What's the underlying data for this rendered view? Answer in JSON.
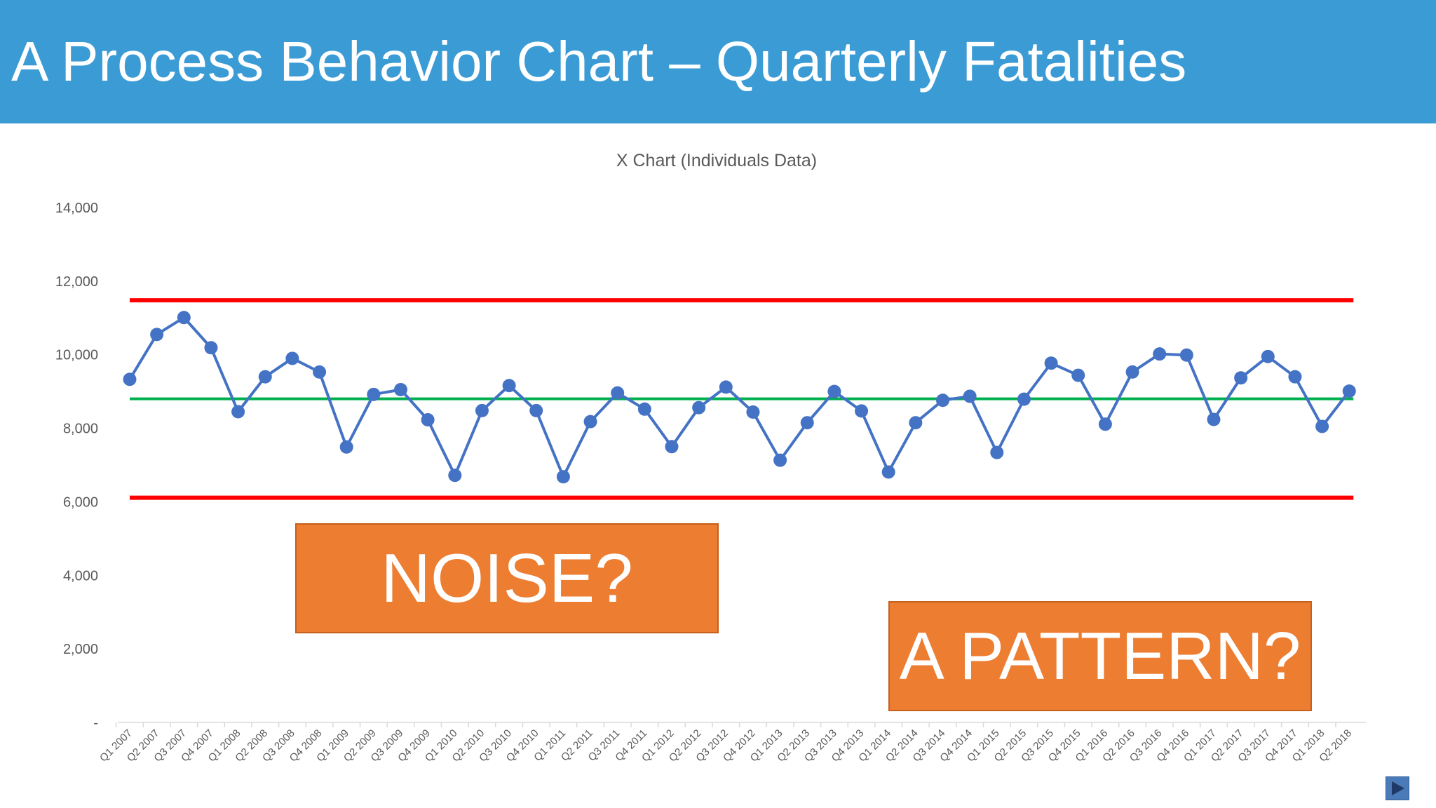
{
  "slide": {
    "title": "A Process Behavior Chart – Quarterly Fatalities"
  },
  "callouts": {
    "noise": "NOISE?",
    "pattern": "A PATTERN?"
  },
  "chart_data": {
    "type": "line",
    "title": "X Chart (Individuals Data)",
    "xlabel": "",
    "ylabel": "",
    "ylim": [
      0,
      14000
    ],
    "y_ticks": [
      {
        "value": 0,
        "label": "-"
      },
      {
        "value": 2000,
        "label": "2,000"
      },
      {
        "value": 4000,
        "label": "4,000"
      },
      {
        "value": 6000,
        "label": "6,000"
      },
      {
        "value": 8000,
        "label": "8,000"
      },
      {
        "value": 10000,
        "label": "10,000"
      },
      {
        "value": 12000,
        "label": "12,000"
      },
      {
        "value": 14000,
        "label": "14,000"
      }
    ],
    "grid": false,
    "legend": "none",
    "categories": [
      "Q1 2007",
      "Q2 2007",
      "Q3 2007",
      "Q4 2007",
      "Q1 2008",
      "Q2 2008",
      "Q3 2008",
      "Q4 2008",
      "Q1 2009",
      "Q2 2009",
      "Q3 2009",
      "Q4 2009",
      "Q1 2010",
      "Q2 2010",
      "Q3 2010",
      "Q4 2010",
      "Q1 2011",
      "Q2 2011",
      "Q3 2011",
      "Q4 2011",
      "Q1 2012",
      "Q2 2012",
      "Q3 2012",
      "Q4 2012",
      "Q1 2013",
      "Q2 2013",
      "Q3 2013",
      "Q4 2013",
      "Q1 2014",
      "Q2 2014",
      "Q3 2014",
      "Q4 2014",
      "Q1 2015",
      "Q2 2015",
      "Q3 2015",
      "Q4 2015",
      "Q1 2016",
      "Q2 2016",
      "Q3 2016",
      "Q4 2016",
      "Q1 2017",
      "Q2 2017",
      "Q3 2017",
      "Q4 2017",
      "Q1 2018",
      "Q2 2018"
    ],
    "series": [
      {
        "values": [
          9330,
          10550,
          11010,
          10190,
          8450,
          9400,
          9900,
          9530,
          7490,
          8920,
          9050,
          8230,
          6720,
          8480,
          9160,
          8480,
          6680,
          8180,
          8960,
          8520,
          7500,
          8560,
          9120,
          8440,
          7130,
          8150,
          9000,
          8470,
          6810,
          8150,
          8760,
          8870,
          7340,
          8790,
          9770,
          9440,
          8110,
          9530,
          10020,
          9990,
          8240,
          9370,
          9950,
          9400,
          8050,
          9010
        ],
        "color": "#4472c4"
      },
      {
        "role": "center-line",
        "value": 8800,
        "color": "#00b050"
      },
      {
        "role": "upper-limit",
        "value": 11480,
        "color": "#ff0000"
      },
      {
        "role": "lower-limit",
        "value": 6110,
        "color": "#ff0000"
      }
    ]
  }
}
